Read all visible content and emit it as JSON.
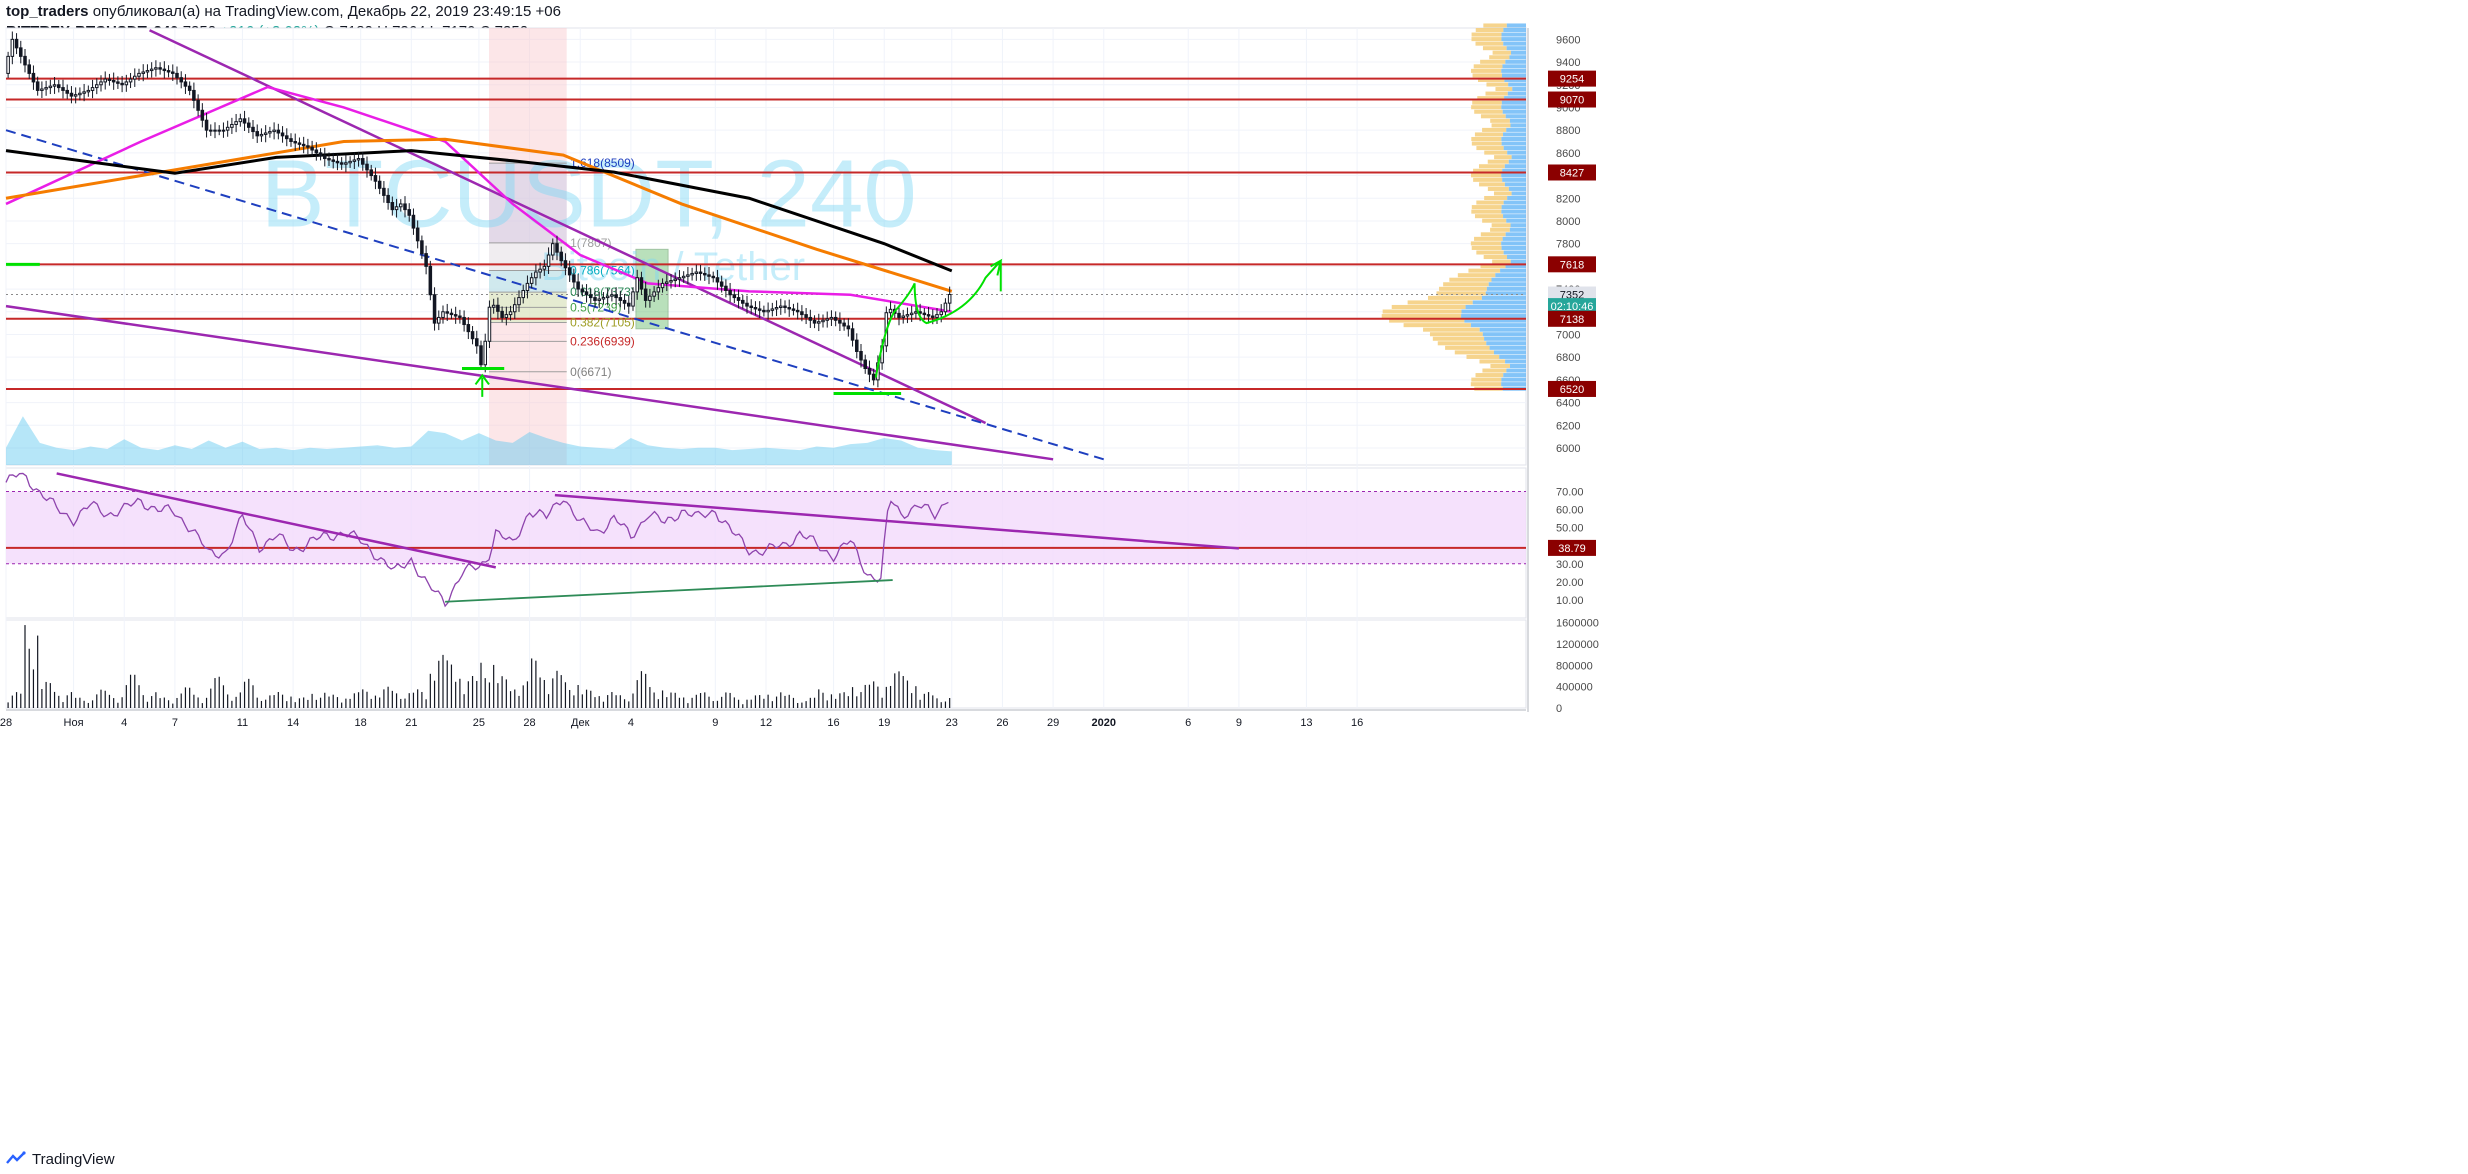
{
  "header": {
    "author": "top_traders",
    "published": "опубликовал(а) на TradingView.com, Декабрь 22, 2019 23:49:15 +06",
    "symbol": "BITTREX:BTCUSDT, 240",
    "last": "7352",
    "change": "+216 (+3.02%)",
    "o_label": "O:",
    "o_value": "7182",
    "h_label": "H:",
    "h_value": "7364",
    "l_label": "L:",
    "l_value": "7170",
    "c_label": "C:",
    "c_value": "7352"
  },
  "watermark": {
    "symbol": "BTCUSDT, 240",
    "name": "Bitcoin / Tether"
  },
  "footer": {
    "brand": "TradingView"
  },
  "colors": {
    "up": "#131722",
    "down": "#131722",
    "level": "#c62828",
    "trend": "#9c27b0",
    "ma_orange": "#f57c00",
    "ma_black": "#000000",
    "ma_magenta": "#e91ee6",
    "dashed": "#1e3fbf",
    "annot": "#00e000",
    "rsi": "#8e44ad",
    "fib_green": "#2e8b57"
  },
  "chart_data": [
    {
      "type": "line",
      "title": "BITTREX:BTCUSDT, 240",
      "price_axis": {
        "ylim": [
          5850,
          9700
        ],
        "ticks": [
          6000,
          6200,
          6400,
          6600,
          6800,
          7000,
          7200,
          7400,
          7600,
          7800,
          8000,
          8200,
          8400,
          8600,
          8800,
          9000,
          9200,
          9400,
          9600
        ]
      },
      "x_axis": {
        "labels": [
          {
            "label": "28",
            "day": 0
          },
          {
            "label": "Ноя",
            "day": 4
          },
          {
            "label": "4",
            "day": 7
          },
          {
            "label": "7",
            "day": 10
          },
          {
            "label": "11",
            "day": 14
          },
          {
            "label": "14",
            "day": 17
          },
          {
            "label": "18",
            "day": 21
          },
          {
            "label": "21",
            "day": 24
          },
          {
            "label": "25",
            "day": 28
          },
          {
            "label": "28",
            "day": 31
          },
          {
            "label": "Дек",
            "day": 34
          },
          {
            "label": "4",
            "day": 37
          },
          {
            "label": "9",
            "day": 42
          },
          {
            "label": "12",
            "day": 45
          },
          {
            "label": "16",
            "day": 49
          },
          {
            "label": "19",
            "day": 52
          },
          {
            "label": "23",
            "day": 56
          },
          {
            "label": "26",
            "day": 59
          },
          {
            "label": "29",
            "day": 62
          },
          {
            "label": "2020",
            "day": 65
          },
          {
            "label": "6",
            "day": 70
          },
          {
            "label": "9",
            "day": 73
          },
          {
            "label": "13",
            "day": 77
          },
          {
            "label": "16",
            "day": 80
          }
        ]
      },
      "price_path": [
        {
          "d": 0,
          "p": 9300
        },
        {
          "d": 0.5,
          "p": 9600
        },
        {
          "d": 1,
          "p": 9450
        },
        {
          "d": 2,
          "p": 9150
        },
        {
          "d": 3,
          "p": 9200
        },
        {
          "d": 4,
          "p": 9100
        },
        {
          "d": 5,
          "p": 9150
        },
        {
          "d": 6,
          "p": 9250
        },
        {
          "d": 7,
          "p": 9200
        },
        {
          "d": 8,
          "p": 9300
        },
        {
          "d": 9,
          "p": 9350
        },
        {
          "d": 10,
          "p": 9300
        },
        {
          "d": 11,
          "p": 9150
        },
        {
          "d": 12,
          "p": 8800
        },
        {
          "d": 13,
          "p": 8800
        },
        {
          "d": 14,
          "p": 8900
        },
        {
          "d": 15,
          "p": 8750
        },
        {
          "d": 16,
          "p": 8800
        },
        {
          "d": 17,
          "p": 8700
        },
        {
          "d": 18,
          "p": 8650
        },
        {
          "d": 19,
          "p": 8550
        },
        {
          "d": 20,
          "p": 8500
        },
        {
          "d": 21,
          "p": 8550
        },
        {
          "d": 22,
          "p": 8350
        },
        {
          "d": 23,
          "p": 8100
        },
        {
          "d": 23.5,
          "p": 8150
        },
        {
          "d": 24,
          "p": 8050
        },
        {
          "d": 25,
          "p": 7600
        },
        {
          "d": 25.5,
          "p": 7100
        },
        {
          "d": 26,
          "p": 7200
        },
        {
          "d": 27,
          "p": 7150
        },
        {
          "d": 28,
          "p": 6900
        },
        {
          "d": 28.3,
          "p": 6700
        },
        {
          "d": 28.8,
          "p": 7300
        },
        {
          "d": 29.5,
          "p": 7150
        },
        {
          "d": 30,
          "p": 7200
        },
        {
          "d": 31,
          "p": 7450
        },
        {
          "d": 31.5,
          "p": 7550
        },
        {
          "d": 32,
          "p": 7600
        },
        {
          "d": 32.5,
          "p": 7800
        },
        {
          "d": 33,
          "p": 7650
        },
        {
          "d": 34,
          "p": 7400
        },
        {
          "d": 35,
          "p": 7300
        },
        {
          "d": 36,
          "p": 7350
        },
        {
          "d": 37,
          "p": 7250
        },
        {
          "d": 37.5,
          "p": 7500
        },
        {
          "d": 38,
          "p": 7300
        },
        {
          "d": 39,
          "p": 7450
        },
        {
          "d": 40,
          "p": 7500
        },
        {
          "d": 41,
          "p": 7550
        },
        {
          "d": 42,
          "p": 7500
        },
        {
          "d": 43,
          "p": 7350
        },
        {
          "d": 44,
          "p": 7250
        },
        {
          "d": 45,
          "p": 7200
        },
        {
          "d": 46,
          "p": 7250
        },
        {
          "d": 47,
          "p": 7200
        },
        {
          "d": 48,
          "p": 7100
        },
        {
          "d": 49,
          "p": 7150
        },
        {
          "d": 50,
          "p": 7050
        },
        {
          "d": 50.5,
          "p": 6850
        },
        {
          "d": 51,
          "p": 6700
        },
        {
          "d": 51.5,
          "p": 6600
        },
        {
          "d": 52,
          "p": 6900
        },
        {
          "d": 52.3,
          "p": 7250
        },
        {
          "d": 53,
          "p": 7150
        },
        {
          "d": 54,
          "p": 7200
        },
        {
          "d": 55,
          "p": 7150
        },
        {
          "d": 55.5,
          "p": 7200
        },
        {
          "d": 56,
          "p": 7352
        }
      ],
      "price_labels": [
        {
          "value": "9254",
          "price": 9254,
          "kind": "level"
        },
        {
          "value": "9070",
          "price": 9070,
          "kind": "level"
        },
        {
          "value": "8427",
          "price": 8427,
          "kind": "level"
        },
        {
          "value": "7618",
          "price": 7618,
          "kind": "level"
        },
        {
          "value": "7352",
          "price": 7352,
          "kind": "last"
        },
        {
          "value": "02:10:46",
          "price": 7250,
          "kind": "timer"
        },
        {
          "value": "7138",
          "price": 7138,
          "kind": "level"
        },
        {
          "value": "6520",
          "price": 6520,
          "kind": "level"
        }
      ],
      "fib_levels": [
        {
          "label": "1.618(8509)",
          "price": 8509
        },
        {
          "label": "1(7807)",
          "price": 7807
        },
        {
          "label": "0.786(7564)",
          "price": 7564
        },
        {
          "label": "0.618(7373)",
          "price": 7373
        },
        {
          "label": "0.5(7239)",
          "price": 7239
        },
        {
          "label": "0.382(7105)",
          "price": 7105
        },
        {
          "label": "0.236(6939)",
          "price": 6939
        },
        {
          "label": "0(6671)",
          "price": 6671
        }
      ],
      "moving_averages": {
        "orange": [
          {
            "d": 0,
            "p": 8200
          },
          {
            "d": 10,
            "p": 8450
          },
          {
            "d": 20,
            "p": 8700
          },
          {
            "d": 26,
            "p": 8720
          },
          {
            "d": 33,
            "p": 8580
          },
          {
            "d": 40,
            "p": 8150
          },
          {
            "d": 48,
            "p": 7750
          },
          {
            "d": 56,
            "p": 7380
          }
        ],
        "black": [
          {
            "d": 0,
            "p": 8620
          },
          {
            "d": 10,
            "p": 8420
          },
          {
            "d": 16,
            "p": 8560
          },
          {
            "d": 24,
            "p": 8620
          },
          {
            "d": 30,
            "p": 8530
          },
          {
            "d": 36,
            "p": 8430
          },
          {
            "d": 44,
            "p": 8200
          },
          {
            "d": 52,
            "p": 7800
          },
          {
            "d": 56,
            "p": 7560
          }
        ],
        "magenta": [
          {
            "d": 0,
            "p": 8150
          },
          {
            "d": 8,
            "p": 8700
          },
          {
            "d": 15.5,
            "p": 9180
          },
          {
            "d": 20,
            "p": 9000
          },
          {
            "d": 26,
            "p": 8700
          },
          {
            "d": 30,
            "p": 8150
          },
          {
            "d": 34,
            "p": 7700
          },
          {
            "d": 38,
            "p": 7450
          },
          {
            "d": 44,
            "p": 7380
          },
          {
            "d": 50,
            "p": 7350
          },
          {
            "d": 56,
            "p": 7200
          }
        ]
      }
    },
    {
      "type": "line",
      "title": "RSI",
      "ylim": [
        0,
        83
      ],
      "ticks": [
        "10.00",
        "20.00",
        "30.00",
        "40.00",
        "50.00",
        "60.00",
        "70.00"
      ],
      "band": [
        30,
        70
      ],
      "level_label": "38.79",
      "level_value": 38.79,
      "values": [
        {
          "d": 0,
          "v": 75
        },
        {
          "d": 1,
          "v": 80
        },
        {
          "d": 2,
          "v": 70
        },
        {
          "d": 3,
          "v": 60
        },
        {
          "d": 4,
          "v": 55
        },
        {
          "d": 5,
          "v": 62
        },
        {
          "d": 6,
          "v": 58
        },
        {
          "d": 7,
          "v": 60
        },
        {
          "d": 8,
          "v": 65
        },
        {
          "d": 9,
          "v": 60
        },
        {
          "d": 10,
          "v": 58
        },
        {
          "d": 11,
          "v": 50
        },
        {
          "d": 12,
          "v": 35
        },
        {
          "d": 13,
          "v": 37
        },
        {
          "d": 14,
          "v": 55
        },
        {
          "d": 15,
          "v": 40
        },
        {
          "d": 16,
          "v": 45
        },
        {
          "d": 17,
          "v": 38
        },
        {
          "d": 18,
          "v": 42
        },
        {
          "d": 19,
          "v": 45
        },
        {
          "d": 20,
          "v": 48
        },
        {
          "d": 21,
          "v": 42
        },
        {
          "d": 22,
          "v": 35
        },
        {
          "d": 23,
          "v": 25
        },
        {
          "d": 24,
          "v": 33
        },
        {
          "d": 25,
          "v": 17
        },
        {
          "d": 26,
          "v": 9
        },
        {
          "d": 27,
          "v": 25
        },
        {
          "d": 28,
          "v": 28
        },
        {
          "d": 28.5,
          "v": 33
        },
        {
          "d": 29,
          "v": 48
        },
        {
          "d": 30,
          "v": 40
        },
        {
          "d": 31,
          "v": 60
        },
        {
          "d": 32,
          "v": 55
        },
        {
          "d": 33,
          "v": 68
        },
        {
          "d": 34,
          "v": 52
        },
        {
          "d": 35,
          "v": 48
        },
        {
          "d": 36,
          "v": 55
        },
        {
          "d": 37,
          "v": 45
        },
        {
          "d": 38,
          "v": 58
        },
        {
          "d": 39,
          "v": 52
        },
        {
          "d": 40,
          "v": 60
        },
        {
          "d": 41,
          "v": 55
        },
        {
          "d": 42,
          "v": 60
        },
        {
          "d": 43,
          "v": 47
        },
        {
          "d": 44,
          "v": 38
        },
        {
          "d": 45,
          "v": 37
        },
        {
          "d": 46,
          "v": 40
        },
        {
          "d": 47,
          "v": 47
        },
        {
          "d": 48,
          "v": 40
        },
        {
          "d": 49,
          "v": 35
        },
        {
          "d": 50,
          "v": 42
        },
        {
          "d": 51,
          "v": 25
        },
        {
          "d": 51.8,
          "v": 21
        },
        {
          "d": 52.3,
          "v": 66
        },
        {
          "d": 53,
          "v": 58
        },
        {
          "d": 54,
          "v": 62
        },
        {
          "d": 55,
          "v": 57
        },
        {
          "d": 56,
          "v": 70
        }
      ]
    },
    {
      "type": "bar",
      "title": "Volume",
      "ylim": [
        0,
        1650000
      ],
      "ticks": [
        "0",
        "400000",
        "800000",
        "1200000",
        "1600000"
      ],
      "values": [
        {
          "d": 0,
          "v": 300000
        },
        {
          "d": 1,
          "v": 1600000
        },
        {
          "d": 2,
          "v": 500000
        },
        {
          "d": 3,
          "v": 300000
        },
        {
          "d": 4,
          "v": 200000
        },
        {
          "d": 5,
          "v": 350000
        },
        {
          "d": 6,
          "v": 250000
        },
        {
          "d": 7,
          "v": 650000
        },
        {
          "d": 8,
          "v": 300000
        },
        {
          "d": 9,
          "v": 200000
        },
        {
          "d": 10,
          "v": 400000
        },
        {
          "d": 11,
          "v": 250000
        },
        {
          "d": 12,
          "v": 600000
        },
        {
          "d": 13,
          "v": 300000
        },
        {
          "d": 14,
          "v": 550000
        },
        {
          "d": 15,
          "v": 250000
        },
        {
          "d": 16,
          "v": 300000
        },
        {
          "d": 17,
          "v": 200000
        },
        {
          "d": 18,
          "v": 300000
        },
        {
          "d": 19,
          "v": 250000
        },
        {
          "d": 20,
          "v": 300000
        },
        {
          "d": 21,
          "v": 350000
        },
        {
          "d": 22,
          "v": 400000
        },
        {
          "d": 23,
          "v": 300000
        },
        {
          "d": 24,
          "v": 350000
        },
        {
          "d": 25,
          "v": 1000000
        },
        {
          "d": 26,
          "v": 900000
        },
        {
          "d": 27,
          "v": 600000
        },
        {
          "d": 28,
          "v": 900000
        },
        {
          "d": 29,
          "v": 600000
        },
        {
          "d": 30,
          "v": 500000
        },
        {
          "d": 31,
          "v": 950000
        },
        {
          "d": 32,
          "v": 700000
        },
        {
          "d": 33,
          "v": 500000
        },
        {
          "d": 34,
          "v": 350000
        },
        {
          "d": 35,
          "v": 300000
        },
        {
          "d": 36,
          "v": 250000
        },
        {
          "d": 37,
          "v": 700000
        },
        {
          "d": 38,
          "v": 400000
        },
        {
          "d": 39,
          "v": 300000
        },
        {
          "d": 40,
          "v": 250000
        },
        {
          "d": 41,
          "v": 300000
        },
        {
          "d": 42,
          "v": 300000
        },
        {
          "d": 43,
          "v": 200000
        },
        {
          "d": 44,
          "v": 250000
        },
        {
          "d": 45,
          "v": 300000
        },
        {
          "d": 46,
          "v": 250000
        },
        {
          "d": 47,
          "v": 200000
        },
        {
          "d": 48,
          "v": 350000
        },
        {
          "d": 49,
          "v": 300000
        },
        {
          "d": 50,
          "v": 450000
        },
        {
          "d": 51,
          "v": 500000
        },
        {
          "d": 52,
          "v": 700000
        },
        {
          "d": 53,
          "v": 600000
        },
        {
          "d": 54,
          "v": 300000
        },
        {
          "d": 55,
          "v": 200000
        },
        {
          "d": 56,
          "v": 150000
        }
      ]
    }
  ]
}
